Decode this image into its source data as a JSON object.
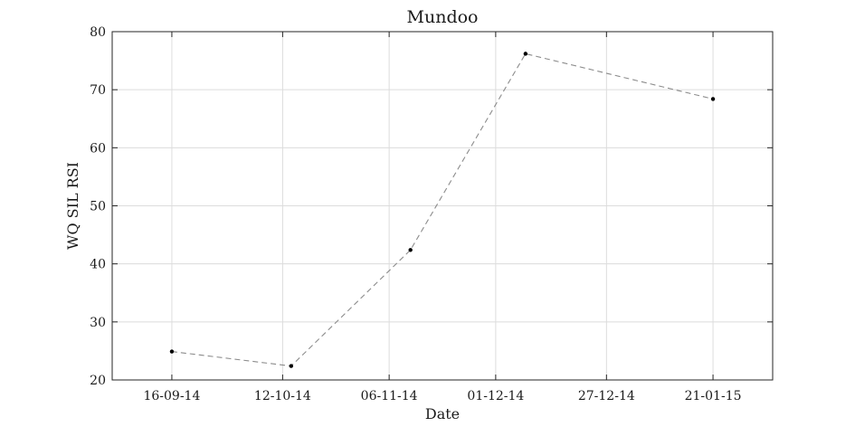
{
  "chart_data": {
    "type": "line",
    "title": "Mundoo",
    "xlabel": "Date",
    "ylabel": "WQ SIL RSI",
    "x_ticks": [
      "16-09-14",
      "12-10-14",
      "06-11-14",
      "01-12-14",
      "27-12-14",
      "21-01-15"
    ],
    "x_range": [
      "2014-09-02",
      "2015-02-04"
    ],
    "ylim": [
      20,
      80
    ],
    "y_ticks": [
      20,
      30,
      40,
      50,
      60,
      70,
      80
    ],
    "grid": true,
    "series": [
      {
        "color": "#8c8c8c",
        "line_style": "dashed",
        "marker": "dot",
        "x": [
          "2014-09-16",
          "2014-10-14",
          "2014-11-11",
          "2014-12-08",
          "2015-01-21"
        ],
        "values": [
          24.9,
          22.4,
          42.4,
          76.2,
          68.4
        ]
      }
    ]
  }
}
